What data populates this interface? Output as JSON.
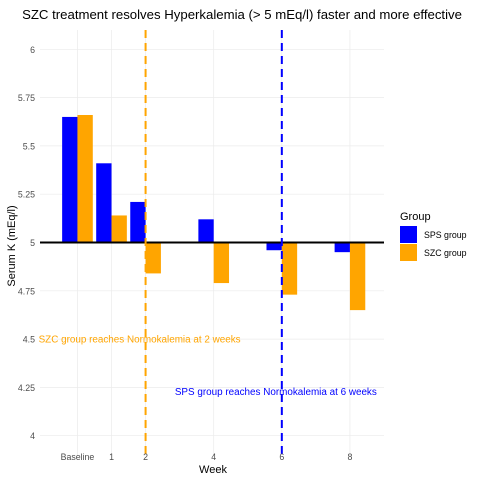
{
  "chart_data": {
    "type": "bar",
    "title": "SZC treatment resolves Hyperkalemia (> 5 mEq/l) faster and more effective",
    "xlabel": "Week",
    "ylabel": "Serum K (mEq/l)",
    "ylim": [
      3.9,
      6.1
    ],
    "x_categories": [
      "Baseline",
      "1",
      "2",
      "4",
      "6",
      "8"
    ],
    "y_ticks": [
      {
        "value": 4,
        "label": "4"
      },
      {
        "value": 4.25,
        "label": "4.25"
      },
      {
        "value": 4.5,
        "label": "4.5"
      },
      {
        "value": 4.75,
        "label": "4.75"
      },
      {
        "value": 5,
        "label": "5"
      },
      {
        "value": 5.25,
        "label": "5.25"
      },
      {
        "value": 5.5,
        "label": "5.5"
      },
      {
        "value": 5.75,
        "label": "5.75"
      },
      {
        "value": 6,
        "label": "6"
      }
    ],
    "baseline_value": 5,
    "grid": true,
    "legend": {
      "title": "Group",
      "position": "right"
    },
    "series": [
      {
        "name": "SPS group",
        "color": "#0000ff",
        "points": [
          {
            "week": "Baseline",
            "value": 5.65
          },
          {
            "week": "1",
            "value": 5.41
          },
          {
            "week": "2",
            "value": 5.21
          },
          {
            "week": "4",
            "value": 5.12
          },
          {
            "week": "6",
            "value": 4.96
          },
          {
            "week": "8",
            "value": 4.95
          }
        ]
      },
      {
        "name": "SZC group",
        "color": "#ffa500",
        "points": [
          {
            "week": "Baseline",
            "value": 5.66
          },
          {
            "week": "1",
            "value": 5.14
          },
          {
            "week": "2",
            "value": 4.84
          },
          {
            "week": "4",
            "value": 4.79
          },
          {
            "week": "6",
            "value": 4.73
          },
          {
            "week": "8",
            "value": 4.65
          }
        ]
      }
    ],
    "reference_lines": [
      {
        "week": "2",
        "color": "#ffa500",
        "label": "SZC group reaches Normokalemia at 2 weeks",
        "label_value": 4.5,
        "label_anchor": "end"
      },
      {
        "week": "6",
        "color": "#0000ff",
        "label": "SPS group reaches Normokalemia at 6 weeks",
        "label_value": 4.23,
        "label_anchor": "end"
      }
    ]
  }
}
